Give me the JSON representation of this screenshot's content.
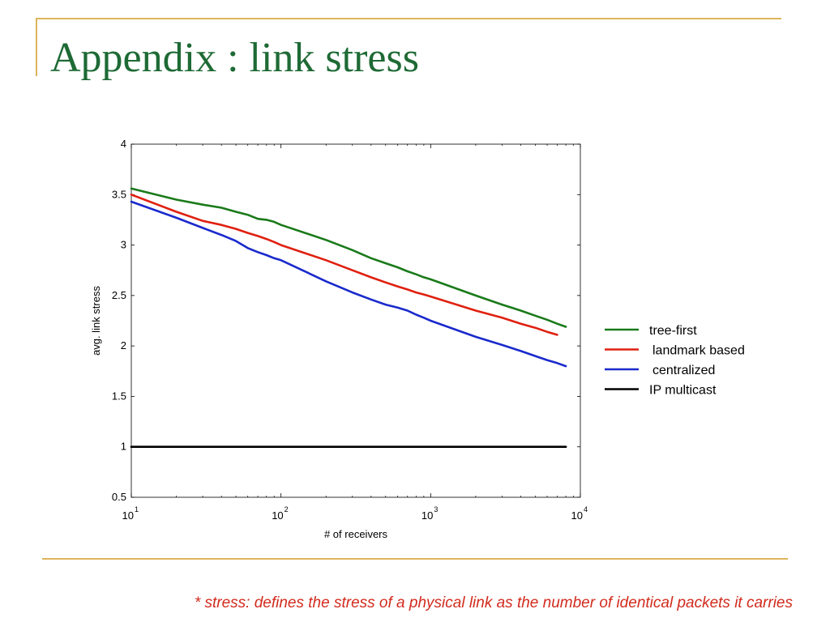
{
  "slide": {
    "title": "Appendix : link stress",
    "footnote": "* stress: defines the stress of a physical link as the number of identical packets it carries"
  },
  "colors": {
    "title": "#1E6A35",
    "border": "#DDB45C",
    "footnote": "#D22B1E"
  },
  "chart_data": {
    "type": "line",
    "title": "",
    "xlabel": "# of receivers",
    "ylabel": "avg. link stress",
    "xscale": "log",
    "xlim": [
      10,
      10000
    ],
    "ylim": [
      0.5,
      4
    ],
    "xticks": [
      {
        "value": 10,
        "base": "10",
        "exp": "1"
      },
      {
        "value": 100,
        "base": "10",
        "exp": "2"
      },
      {
        "value": 1000,
        "base": "10",
        "exp": "3"
      },
      {
        "value": 10000,
        "base": "10",
        "exp": "4"
      }
    ],
    "yticks": [
      "0.5",
      "1",
      "1.5",
      "2",
      "2.5",
      "3",
      "3.5",
      "4"
    ],
    "grid": false,
    "legend_position": "right",
    "series": [
      {
        "name": "tree-first",
        "color": "#1A7A1A",
        "x": [
          10,
          20,
          30,
          40,
          50,
          60,
          70,
          80,
          90,
          100,
          200,
          300,
          400,
          500,
          600,
          700,
          800,
          900,
          1000,
          2000,
          3000,
          4000,
          5000,
          6000,
          7000,
          8000
        ],
        "y": [
          3.56,
          3.45,
          3.4,
          3.37,
          3.33,
          3.3,
          3.26,
          3.25,
          3.23,
          3.2,
          3.05,
          2.95,
          2.87,
          2.82,
          2.78,
          2.74,
          2.71,
          2.68,
          2.66,
          2.5,
          2.41,
          2.35,
          2.3,
          2.26,
          2.22,
          2.19
        ]
      },
      {
        "name": "landmark based",
        "color": "#E02010",
        "x": [
          10,
          20,
          30,
          40,
          50,
          60,
          70,
          80,
          90,
          100,
          200,
          300,
          400,
          500,
          600,
          700,
          800,
          900,
          1000,
          2000,
          3000,
          4000,
          5000,
          6000,
          7000
        ],
        "y": [
          3.5,
          3.33,
          3.24,
          3.2,
          3.16,
          3.12,
          3.09,
          3.06,
          3.03,
          3.0,
          2.85,
          2.75,
          2.68,
          2.63,
          2.59,
          2.56,
          2.53,
          2.51,
          2.49,
          2.35,
          2.28,
          2.22,
          2.18,
          2.14,
          2.11
        ]
      },
      {
        "name": "centralized",
        "color": "#1A2ACC",
        "x": [
          10,
          20,
          30,
          40,
          50,
          60,
          70,
          80,
          90,
          100,
          200,
          300,
          400,
          500,
          600,
          700,
          800,
          900,
          1000,
          2000,
          3000,
          4000,
          5000,
          6000,
          7000,
          8000
        ],
        "y": [
          3.43,
          3.27,
          3.17,
          3.1,
          3.04,
          2.97,
          2.93,
          2.9,
          2.87,
          2.85,
          2.64,
          2.53,
          2.46,
          2.41,
          2.38,
          2.35,
          2.31,
          2.28,
          2.25,
          2.09,
          2.01,
          1.95,
          1.9,
          1.86,
          1.83,
          1.8
        ]
      },
      {
        "name": "IP multicast",
        "color": "#000000",
        "x": [
          10,
          8000
        ],
        "y": [
          1.0,
          1.0
        ]
      }
    ]
  }
}
